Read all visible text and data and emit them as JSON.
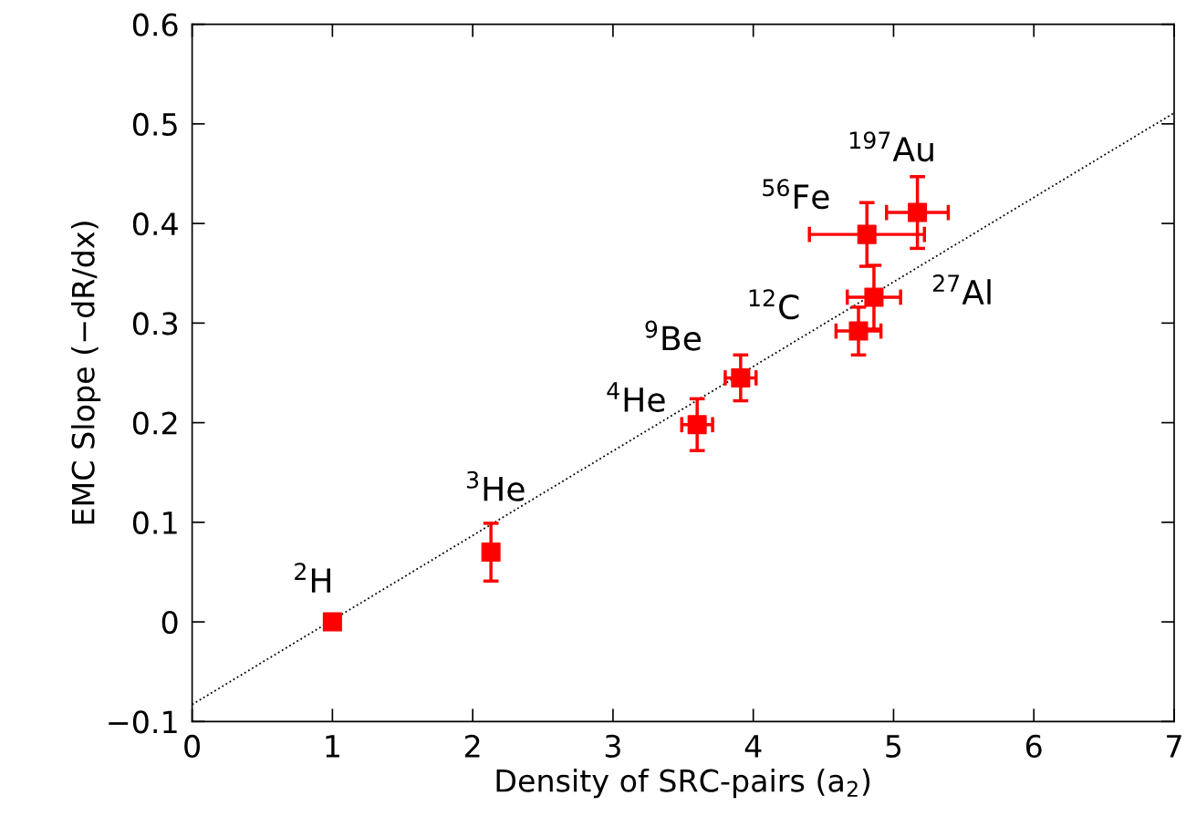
{
  "chart_data": {
    "type": "scatter",
    "xlabel": "Density of SRC-pairs (a$_{2}$)",
    "ylabel": "EMC Slope (−dR/dx)",
    "xlim": [
      0,
      7
    ],
    "ylim": [
      -0.1,
      0.6
    ],
    "xticks": [
      0,
      1,
      2,
      3,
      4,
      5,
      6,
      7
    ],
    "yticks": [
      {
        "value": -0.1,
        "label": "−0.1"
      },
      0,
      0.1,
      0.2,
      0.3,
      0.4,
      0.5,
      0.6
    ],
    "grid": false,
    "series": [
      {
        "type": "line",
        "color": "#000000",
        "line_style": "dotted",
        "marker": "none",
        "x": [
          0,
          7
        ],
        "values": [
          -0.083,
          0.511
        ]
      },
      {
        "color": "#ff0000",
        "marker": "square",
        "x": [
          1.0,
          2.13,
          3.6,
          3.91,
          4.75,
          4.86,
          4.81,
          5.17
        ],
        "values": [
          0,
          0.07,
          0.198,
          0.245,
          0.292,
          0.326,
          0.389,
          0.411
        ],
        "errors": [
          null,
          0.029,
          0.026,
          0.023,
          0.024,
          0.032,
          0.032,
          0.036
        ],
        "xerrors": [
          null,
          null,
          0.11,
          0.11,
          0.16,
          0.19,
          0.41,
          0.22
        ]
      }
    ],
    "annotations": [
      {
        "text": "$^{2}$H",
        "x": 1.0,
        "y": 0
      },
      {
        "text": "$^{3}$He",
        "x": 2.13,
        "y": 0.07
      },
      {
        "text": "$^{4}$He",
        "x": 3.6,
        "y": 0.198
      },
      {
        "text": "$^{9}$Be",
        "x": 3.91,
        "y": 0.245
      },
      {
        "text": "$^{12}$C",
        "x": 4.75,
        "y": 0.292
      },
      {
        "text": "$^{27}$Al",
        "x": 4.86,
        "y": 0.326
      },
      {
        "text": "$^{56}$Fe",
        "x": 4.81,
        "y": 0.389
      },
      {
        "text": "$^{197}$Au",
        "x": 5.17,
        "y": 0.411
      }
    ]
  }
}
